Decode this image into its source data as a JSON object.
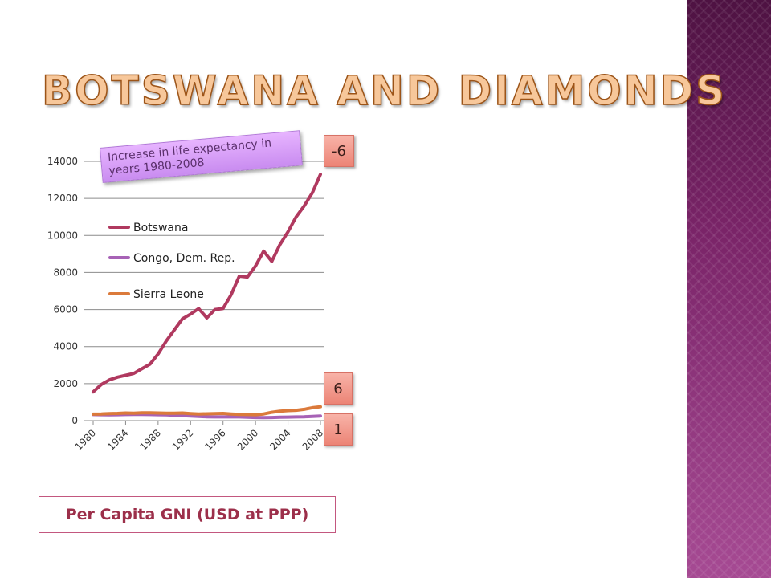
{
  "slide": {
    "title": "BOTSWANA AND DIAMONDS",
    "annotation": "Increase in life expectancy in years 1980-2008",
    "chips": {
      "botswana": "-6",
      "sierra_leone": "6",
      "congo": "1"
    },
    "caption": "Per Capita GNI (USD at PPP)",
    "sidebar_color": "#7a2468"
  },
  "chart_data": {
    "type": "line",
    "title": "",
    "xlabel": "",
    "ylabel": "",
    "x": [
      1980,
      1981,
      1982,
      1983,
      1984,
      1985,
      1986,
      1987,
      1988,
      1989,
      1990,
      1991,
      1992,
      1993,
      1994,
      1995,
      1996,
      1997,
      1998,
      1999,
      2000,
      2001,
      2002,
      2003,
      2004,
      2005,
      2006,
      2007,
      2008
    ],
    "xticks": [
      "1980",
      "1984",
      "1988",
      "1992",
      "1996",
      "2000",
      "2004",
      "2008"
    ],
    "yticks": [
      "0",
      "2000",
      "4000",
      "6000",
      "8000",
      "10000",
      "12000",
      "14000"
    ],
    "ylim": [
      0,
      14000
    ],
    "grid": true,
    "legend": "top-left inside plot",
    "series": [
      {
        "name": "Botswana",
        "color": "#b0395f",
        "values": [
          1550,
          1950,
          2200,
          2350,
          2450,
          2550,
          2800,
          3050,
          3600,
          4300,
          4900,
          5500,
          5750,
          6050,
          5550,
          6000,
          6050,
          6800,
          7800,
          7750,
          8350,
          9150,
          8600,
          9500,
          10200,
          11000,
          11600,
          12300,
          13300
        ]
      },
      {
        "name": "Congo, Dem. Rep.",
        "color": "#a762b6",
        "values": [
          330,
          320,
          310,
          320,
          330,
          340,
          340,
          330,
          320,
          310,
          290,
          270,
          250,
          230,
          210,
          200,
          200,
          210,
          200,
          180,
          170,
          160,
          170,
          180,
          190,
          200,
          210,
          230,
          250
        ]
      },
      {
        "name": "Sierra Leone",
        "color": "#db7a3b",
        "values": [
          350,
          360,
          380,
          390,
          410,
          400,
          420,
          420,
          410,
          400,
          400,
          410,
          380,
          360,
          370,
          380,
          390,
          360,
          340,
          330,
          320,
          360,
          450,
          510,
          540,
          560,
          610,
          700,
          750
        ]
      }
    ]
  }
}
